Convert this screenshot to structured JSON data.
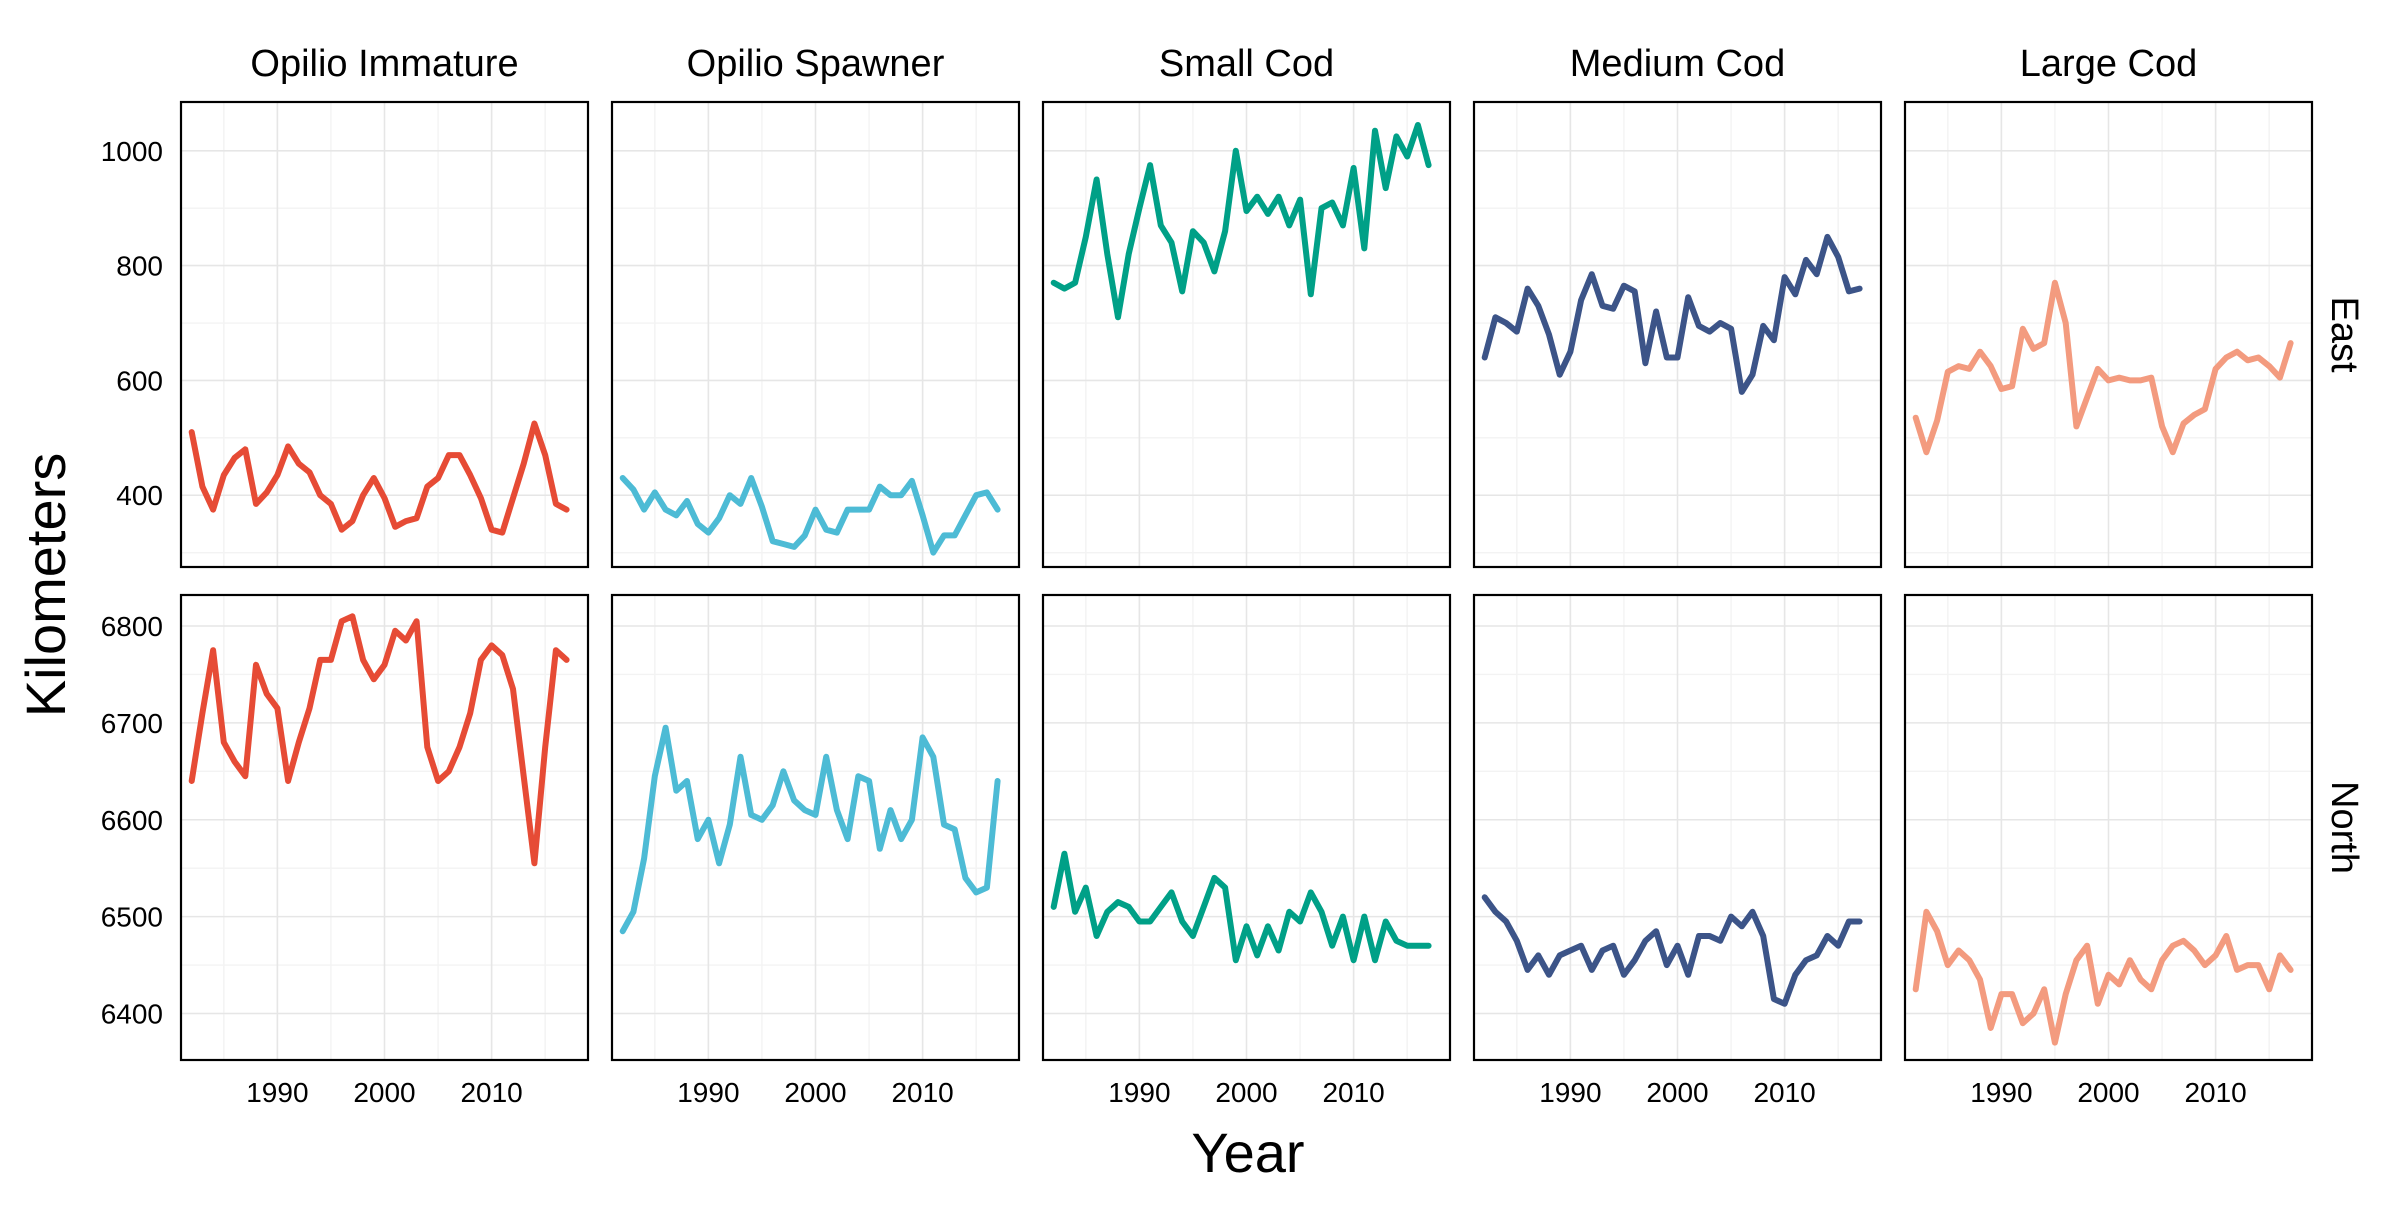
{
  "chart_data": {
    "type": "line",
    "xlabel": "Year",
    "ylabel": "Kilometers",
    "x_ticks": [
      1990,
      2000,
      2010
    ],
    "xlim": [
      1981,
      2019
    ],
    "grid": true,
    "legend": "none",
    "panel_columns": [
      "Opilio Immature",
      "Opilio Spawner",
      "Small Cod",
      "Medium Cod",
      "Large Cod"
    ],
    "panel_rows": [
      "East",
      "North"
    ],
    "column_colors": [
      "#E64B35",
      "#4DBBD5",
      "#00A087",
      "#3C5488",
      "#F39B7F"
    ],
    "rows": [
      {
        "name": "East",
        "y_ticks": [
          400,
          600,
          800,
          1000
        ],
        "ylim": [
          275,
          1085
        ],
        "series": [
          {
            "panel": "Opilio Immature",
            "x": [
              1982,
              1983,
              1984,
              1985,
              1986,
              1987,
              1988,
              1989,
              1990,
              1991,
              1992,
              1993,
              1994,
              1995,
              1996,
              1997,
              1998,
              1999,
              2000,
              2001,
              2002,
              2003,
              2004,
              2005,
              2006,
              2007,
              2008,
              2009,
              2010,
              2011,
              2012,
              2013,
              2014,
              2015,
              2016,
              2017
            ],
            "values": [
              510,
              415,
              375,
              435,
              465,
              480,
              385,
              405,
              435,
              485,
              455,
              440,
              400,
              385,
              340,
              355,
              400,
              430,
              395,
              345,
              355,
              360,
              415,
              430,
              470,
              470,
              435,
              395,
              340,
              335,
              395,
              455,
              525,
              470,
              385,
              375
            ]
          },
          {
            "panel": "Opilio Spawner",
            "x": [
              1982,
              1983,
              1984,
              1985,
              1986,
              1987,
              1988,
              1989,
              1990,
              1991,
              1992,
              1993,
              1994,
              1995,
              1996,
              1997,
              1998,
              1999,
              2000,
              2001,
              2002,
              2003,
              2004,
              2005,
              2006,
              2007,
              2008,
              2009,
              2010,
              2011,
              2012,
              2013,
              2014,
              2015,
              2016,
              2017
            ],
            "values": [
              430,
              410,
              375,
              405,
              375,
              365,
              390,
              350,
              335,
              360,
              400,
              385,
              430,
              380,
              320,
              315,
              310,
              330,
              375,
              340,
              335,
              375,
              375,
              375,
              415,
              400,
              400,
              425,
              365,
              300,
              330,
              330,
              365,
              400,
              405,
              375
            ]
          },
          {
            "panel": "Small Cod",
            "x": [
              1982,
              1983,
              1984,
              1985,
              1986,
              1987,
              1988,
              1989,
              1990,
              1991,
              1992,
              1993,
              1994,
              1995,
              1996,
              1997,
              1998,
              1999,
              2000,
              2001,
              2002,
              2003,
              2004,
              2005,
              2006,
              2007,
              2008,
              2009,
              2010,
              2011,
              2012,
              2013,
              2014,
              2015,
              2016,
              2017
            ],
            "values": [
              770,
              760,
              770,
              850,
              950,
              820,
              710,
              820,
              900,
              975,
              870,
              840,
              755,
              860,
              840,
              790,
              860,
              1000,
              895,
              920,
              890,
              920,
              870,
              915,
              750,
              900,
              910,
              870,
              970,
              830,
              1035,
              935,
              1025,
              990,
              1045,
              975
            ]
          },
          {
            "panel": "Medium Cod",
            "x": [
              1982,
              1983,
              1984,
              1985,
              1986,
              1987,
              1988,
              1989,
              1990,
              1991,
              1992,
              1993,
              1994,
              1995,
              1996,
              1997,
              1998,
              1999,
              2000,
              2001,
              2002,
              2003,
              2004,
              2005,
              2006,
              2007,
              2008,
              2009,
              2010,
              2011,
              2012,
              2013,
              2014,
              2015,
              2016,
              2017
            ],
            "values": [
              640,
              710,
              700,
              685,
              760,
              730,
              680,
              610,
              650,
              740,
              785,
              730,
              725,
              765,
              755,
              630,
              720,
              640,
              640,
              745,
              695,
              685,
              700,
              690,
              580,
              610,
              695,
              670,
              780,
              750,
              810,
              785,
              850,
              815,
              755,
              760
            ]
          },
          {
            "panel": "Large Cod",
            "x": [
              1982,
              1983,
              1984,
              1985,
              1986,
              1987,
              1988,
              1989,
              1990,
              1991,
              1992,
              1993,
              1994,
              1995,
              1996,
              1997,
              1998,
              1999,
              2000,
              2001,
              2002,
              2003,
              2004,
              2005,
              2006,
              2007,
              2008,
              2009,
              2010,
              2011,
              2012,
              2013,
              2014,
              2015,
              2016,
              2017
            ],
            "values": [
              535,
              475,
              530,
              615,
              625,
              620,
              650,
              625,
              585,
              590,
              690,
              655,
              665,
              770,
              700,
              520,
              570,
              620,
              600,
              605,
              600,
              600,
              605,
              520,
              475,
              525,
              540,
              550,
              620,
              640,
              650,
              635,
              640,
              625,
              605,
              665
            ]
          }
        ]
      },
      {
        "name": "North",
        "y_ticks": [
          6400,
          6500,
          6600,
          6700,
          6800
        ],
        "ylim": [
          6352,
          6832
        ],
        "series": [
          {
            "panel": "Opilio Immature",
            "x": [
              1982,
              1983,
              1984,
              1985,
              1986,
              1987,
              1988,
              1989,
              1990,
              1991,
              1992,
              1993,
              1994,
              1995,
              1996,
              1997,
              1998,
              1999,
              2000,
              2001,
              2002,
              2003,
              2004,
              2005,
              2006,
              2007,
              2008,
              2009,
              2010,
              2011,
              2012,
              2013,
              2014,
              2015,
              2016,
              2017
            ],
            "values": [
              6640,
              6710,
              6775,
              6680,
              6660,
              6645,
              6760,
              6730,
              6715,
              6640,
              6680,
              6715,
              6765,
              6765,
              6805,
              6810,
              6765,
              6745,
              6760,
              6795,
              6785,
              6805,
              6675,
              6640,
              6650,
              6675,
              6710,
              6765,
              6780,
              6770,
              6735,
              6645,
              6555,
              6675,
              6775,
              6765
            ]
          },
          {
            "panel": "Opilio Spawner",
            "x": [
              1982,
              1983,
              1984,
              1985,
              1986,
              1987,
              1988,
              1989,
              1990,
              1991,
              1992,
              1993,
              1994,
              1995,
              1996,
              1997,
              1998,
              1999,
              2000,
              2001,
              2002,
              2003,
              2004,
              2005,
              2006,
              2007,
              2008,
              2009,
              2010,
              2011,
              2012,
              2013,
              2014,
              2015,
              2016,
              2017
            ],
            "values": [
              6485,
              6505,
              6560,
              6645,
              6695,
              6630,
              6640,
              6580,
              6600,
              6555,
              6595,
              6665,
              6605,
              6600,
              6615,
              6650,
              6620,
              6610,
              6605,
              6665,
              6610,
              6580,
              6645,
              6640,
              6570,
              6610,
              6580,
              6600,
              6685,
              6665,
              6595,
              6590,
              6540,
              6525,
              6530,
              6640
            ]
          },
          {
            "panel": "Small Cod",
            "x": [
              1982,
              1983,
              1984,
              1985,
              1986,
              1987,
              1988,
              1989,
              1990,
              1991,
              1992,
              1993,
              1994,
              1995,
              1996,
              1997,
              1998,
              1999,
              2000,
              2001,
              2002,
              2003,
              2004,
              2005,
              2006,
              2007,
              2008,
              2009,
              2010,
              2011,
              2012,
              2013,
              2014,
              2015,
              2016,
              2017
            ],
            "values": [
              6510,
              6565,
              6505,
              6530,
              6480,
              6505,
              6515,
              6510,
              6495,
              6495,
              6510,
              6525,
              6495,
              6480,
              6510,
              6540,
              6530,
              6455,
              6490,
              6460,
              6490,
              6465,
              6505,
              6495,
              6525,
              6505,
              6470,
              6500,
              6455,
              6500,
              6455,
              6495,
              6475,
              6470,
              6470,
              6470
            ]
          },
          {
            "panel": "Medium Cod",
            "x": [
              1982,
              1983,
              1984,
              1985,
              1986,
              1987,
              1988,
              1989,
              1990,
              1991,
              1992,
              1993,
              1994,
              1995,
              1996,
              1997,
              1998,
              1999,
              2000,
              2001,
              2002,
              2003,
              2004,
              2005,
              2006,
              2007,
              2008,
              2009,
              2010,
              2011,
              2012,
              2013,
              2014,
              2015,
              2016,
              2017
            ],
            "values": [
              6520,
              6505,
              6495,
              6475,
              6445,
              6460,
              6440,
              6460,
              6465,
              6470,
              6445,
              6465,
              6470,
              6440,
              6455,
              6475,
              6485,
              6450,
              6470,
              6440,
              6480,
              6480,
              6475,
              6500,
              6490,
              6505,
              6480,
              6415,
              6410,
              6440,
              6455,
              6460,
              6480,
              6470,
              6495,
              6495
            ]
          },
          {
            "panel": "Large Cod",
            "x": [
              1982,
              1983,
              1984,
              1985,
              1986,
              1987,
              1988,
              1989,
              1990,
              1991,
              1992,
              1993,
              1994,
              1995,
              1996,
              1997,
              1998,
              1999,
              2000,
              2001,
              2002,
              2003,
              2004,
              2005,
              2006,
              2007,
              2008,
              2009,
              2010,
              2011,
              2012,
              2013,
              2014,
              2015,
              2016,
              2017
            ],
            "values": [
              6425,
              6505,
              6485,
              6450,
              6465,
              6455,
              6435,
              6385,
              6420,
              6420,
              6390,
              6400,
              6425,
              6370,
              6420,
              6455,
              6470,
              6410,
              6440,
              6430,
              6455,
              6435,
              6425,
              6455,
              6470,
              6475,
              6465,
              6450,
              6460,
              6480,
              6445,
              6450,
              6450,
              6425,
              6460,
              6445
            ]
          }
        ]
      }
    ]
  }
}
